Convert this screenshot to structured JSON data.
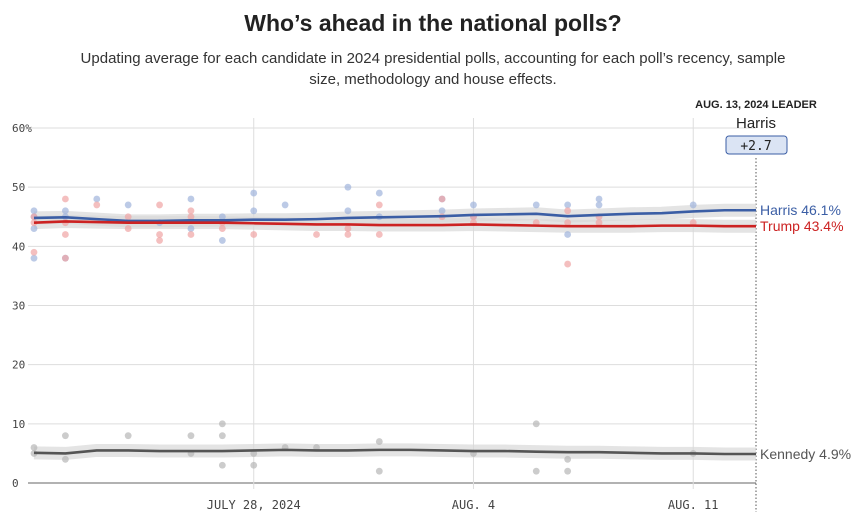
{
  "title": "Who’s ahead in the national polls?",
  "subtitle": "Updating average for each candidate in 2024 presidential polls, accounting for each poll’s recency, sample size, methodology and house effects.",
  "leader_box": {
    "heading": "AUG. 13, 2024 LEADER",
    "name": "Harris",
    "margin": "+2.7"
  },
  "colors": {
    "harris": "#3b5ea5",
    "trump": "#cc2222",
    "kennedy": "#555555",
    "harris_dot": "#9fb4dc",
    "trump_dot": "#f0a4a4",
    "kennedy_dot": "#b7b7b7",
    "band": "#d9d9d9",
    "grid": "#dddddd",
    "leader_fill": "#dbe4f4"
  },
  "chart_data": {
    "type": "line",
    "ylim": [
      0,
      60
    ],
    "yticks": [
      "60%",
      "50",
      "40",
      "30",
      "20",
      "10",
      "0"
    ],
    "x_domain": [
      "2024-07-21",
      "2024-08-13"
    ],
    "x_tick_labels": [
      {
        "date": "2024-07-28",
        "label": "JULY 28, 2024"
      },
      {
        "date": "2024-08-04",
        "label": "AUG. 4"
      },
      {
        "date": "2024-08-11",
        "label": "AUG. 11"
      }
    ],
    "series": [
      {
        "name": "Harris",
        "key": "harris",
        "end_label": "Harris 46.1%",
        "values": [
          [
            "2024-07-21",
            44.8
          ],
          [
            "2024-07-22",
            44.9
          ],
          [
            "2024-07-23",
            44.6
          ],
          [
            "2024-07-24",
            44.3
          ],
          [
            "2024-07-25",
            44.3
          ],
          [
            "2024-07-26",
            44.4
          ],
          [
            "2024-07-27",
            44.4
          ],
          [
            "2024-07-28",
            44.5
          ],
          [
            "2024-07-29",
            44.5
          ],
          [
            "2024-07-30",
            44.6
          ],
          [
            "2024-07-31",
            44.8
          ],
          [
            "2024-08-01",
            44.9
          ],
          [
            "2024-08-02",
            45.0
          ],
          [
            "2024-08-03",
            45.1
          ],
          [
            "2024-08-04",
            45.3
          ],
          [
            "2024-08-05",
            45.4
          ],
          [
            "2024-08-06",
            45.5
          ],
          [
            "2024-08-07",
            45.1
          ],
          [
            "2024-08-08",
            45.3
          ],
          [
            "2024-08-09",
            45.5
          ],
          [
            "2024-08-10",
            45.6
          ],
          [
            "2024-08-11",
            45.9
          ],
          [
            "2024-08-12",
            46.1
          ],
          [
            "2024-08-13",
            46.1
          ]
        ],
        "polls": [
          [
            "2024-07-21",
            46
          ],
          [
            "2024-07-21",
            45
          ],
          [
            "2024-07-21",
            43
          ],
          [
            "2024-07-21",
            38
          ],
          [
            "2024-07-22",
            46
          ],
          [
            "2024-07-22",
            45
          ],
          [
            "2024-07-22",
            38
          ],
          [
            "2024-07-23",
            48
          ],
          [
            "2024-07-24",
            47
          ],
          [
            "2024-07-25",
            44
          ],
          [
            "2024-07-26",
            48
          ],
          [
            "2024-07-26",
            43
          ],
          [
            "2024-07-27",
            45
          ],
          [
            "2024-07-27",
            41
          ],
          [
            "2024-07-28",
            46
          ],
          [
            "2024-07-28",
            49
          ],
          [
            "2024-07-29",
            47
          ],
          [
            "2024-07-31",
            50
          ],
          [
            "2024-07-31",
            46
          ],
          [
            "2024-08-01",
            49
          ],
          [
            "2024-08-01",
            45
          ],
          [
            "2024-08-03",
            48
          ],
          [
            "2024-08-03",
            46
          ],
          [
            "2024-08-04",
            47
          ],
          [
            "2024-08-04",
            45
          ],
          [
            "2024-08-06",
            47
          ],
          [
            "2024-08-07",
            47
          ],
          [
            "2024-08-07",
            42
          ],
          [
            "2024-08-08",
            48
          ],
          [
            "2024-08-08",
            47
          ],
          [
            "2024-08-11",
            47
          ]
        ]
      },
      {
        "name": "Trump",
        "key": "trump",
        "end_label": "Trump 43.4%",
        "values": [
          [
            "2024-07-21",
            44.0
          ],
          [
            "2024-07-22",
            44.2
          ],
          [
            "2024-07-23",
            44.1
          ],
          [
            "2024-07-24",
            44.0
          ],
          [
            "2024-07-25",
            44.0
          ],
          [
            "2024-07-26",
            44.0
          ],
          [
            "2024-07-27",
            44.0
          ],
          [
            "2024-07-28",
            43.9
          ],
          [
            "2024-07-29",
            43.8
          ],
          [
            "2024-07-30",
            43.7
          ],
          [
            "2024-07-31",
            43.7
          ],
          [
            "2024-08-01",
            43.6
          ],
          [
            "2024-08-02",
            43.6
          ],
          [
            "2024-08-03",
            43.6
          ],
          [
            "2024-08-04",
            43.7
          ],
          [
            "2024-08-05",
            43.6
          ],
          [
            "2024-08-06",
            43.5
          ],
          [
            "2024-08-07",
            43.4
          ],
          [
            "2024-08-08",
            43.4
          ],
          [
            "2024-08-09",
            43.4
          ],
          [
            "2024-08-10",
            43.5
          ],
          [
            "2024-08-11",
            43.5
          ],
          [
            "2024-08-12",
            43.4
          ],
          [
            "2024-08-13",
            43.4
          ]
        ],
        "polls": [
          [
            "2024-07-21",
            45
          ],
          [
            "2024-07-21",
            44
          ],
          [
            "2024-07-21",
            39
          ],
          [
            "2024-07-22",
            48
          ],
          [
            "2024-07-22",
            44
          ],
          [
            "2024-07-22",
            42
          ],
          [
            "2024-07-22",
            38
          ],
          [
            "2024-07-23",
            47
          ],
          [
            "2024-07-24",
            45
          ],
          [
            "2024-07-24",
            43
          ],
          [
            "2024-07-25",
            47
          ],
          [
            "2024-07-25",
            42
          ],
          [
            "2024-07-25",
            41
          ],
          [
            "2024-07-26",
            46
          ],
          [
            "2024-07-26",
            45
          ],
          [
            "2024-07-26",
            42
          ],
          [
            "2024-07-27",
            44
          ],
          [
            "2024-07-27",
            43
          ],
          [
            "2024-07-28",
            42
          ],
          [
            "2024-07-30",
            42
          ],
          [
            "2024-07-31",
            43
          ],
          [
            "2024-07-31",
            42
          ],
          [
            "2024-08-01",
            47
          ],
          [
            "2024-08-01",
            42
          ],
          [
            "2024-08-03",
            48
          ],
          [
            "2024-08-03",
            45
          ],
          [
            "2024-08-04",
            45
          ],
          [
            "2024-08-04",
            44
          ],
          [
            "2024-08-06",
            44
          ],
          [
            "2024-08-07",
            46
          ],
          [
            "2024-08-07",
            44
          ],
          [
            "2024-08-07",
            37
          ],
          [
            "2024-08-08",
            45
          ],
          [
            "2024-08-08",
            44
          ],
          [
            "2024-08-11",
            44
          ]
        ]
      },
      {
        "name": "Kennedy",
        "key": "kennedy",
        "end_label": "Kennedy 4.9%",
        "values": [
          [
            "2024-07-21",
            5.1
          ],
          [
            "2024-07-22",
            5.0
          ],
          [
            "2024-07-23",
            5.5
          ],
          [
            "2024-07-24",
            5.5
          ],
          [
            "2024-07-25",
            5.4
          ],
          [
            "2024-07-26",
            5.4
          ],
          [
            "2024-07-27",
            5.4
          ],
          [
            "2024-07-28",
            5.5
          ],
          [
            "2024-07-29",
            5.6
          ],
          [
            "2024-07-30",
            5.5
          ],
          [
            "2024-07-31",
            5.5
          ],
          [
            "2024-08-01",
            5.6
          ],
          [
            "2024-08-02",
            5.6
          ],
          [
            "2024-08-03",
            5.5
          ],
          [
            "2024-08-04",
            5.4
          ],
          [
            "2024-08-05",
            5.4
          ],
          [
            "2024-08-06",
            5.3
          ],
          [
            "2024-08-07",
            5.2
          ],
          [
            "2024-08-08",
            5.2
          ],
          [
            "2024-08-09",
            5.1
          ],
          [
            "2024-08-10",
            5.0
          ],
          [
            "2024-08-11",
            5.0
          ],
          [
            "2024-08-12",
            4.9
          ],
          [
            "2024-08-13",
            4.9
          ]
        ],
        "polls": [
          [
            "2024-07-21",
            6
          ],
          [
            "2024-07-21",
            5
          ],
          [
            "2024-07-22",
            8
          ],
          [
            "2024-07-22",
            4
          ],
          [
            "2024-07-24",
            8
          ],
          [
            "2024-07-26",
            8
          ],
          [
            "2024-07-26",
            5
          ],
          [
            "2024-07-27",
            10
          ],
          [
            "2024-07-27",
            8
          ],
          [
            "2024-07-27",
            3
          ],
          [
            "2024-07-28",
            5
          ],
          [
            "2024-07-28",
            3
          ],
          [
            "2024-07-29",
            6
          ],
          [
            "2024-07-30",
            6
          ],
          [
            "2024-08-01",
            7
          ],
          [
            "2024-08-01",
            2
          ],
          [
            "2024-08-04",
            5
          ],
          [
            "2024-08-06",
            10
          ],
          [
            "2024-08-06",
            2
          ],
          [
            "2024-08-07",
            4
          ],
          [
            "2024-08-07",
            2
          ],
          [
            "2024-08-11",
            5
          ]
        ]
      }
    ]
  }
}
